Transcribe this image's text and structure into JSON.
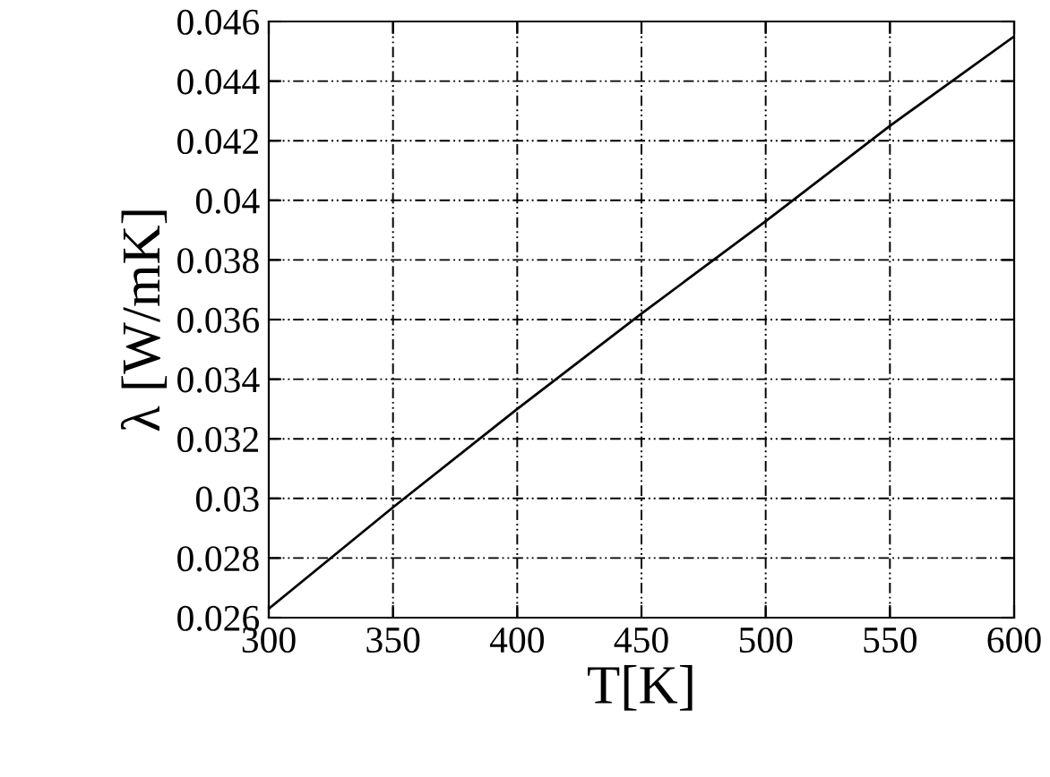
{
  "chart_data": {
    "type": "line",
    "xlabel": "T[K]",
    "ylabel": "λ [W/mK]",
    "x": [
      300,
      350,
      400,
      450,
      500,
      550,
      600
    ],
    "series": [
      {
        "color": "#000000",
        "values": [
          0.0263,
          0.0297,
          0.033,
          0.0362,
          0.0393,
          0.0425,
          0.0455
        ]
      }
    ],
    "xlim": [
      300,
      600
    ],
    "xticks": [
      300,
      350,
      400,
      450,
      500,
      550,
      600
    ],
    "ylim": [
      0.026,
      0.046
    ],
    "yticks": [
      0.026,
      0.028,
      0.03,
      0.032,
      0.034,
      0.036,
      0.038,
      0.04,
      0.042,
      0.044,
      0.046
    ],
    "grid": true,
    "line_style": "solid",
    "marker": "none"
  }
}
